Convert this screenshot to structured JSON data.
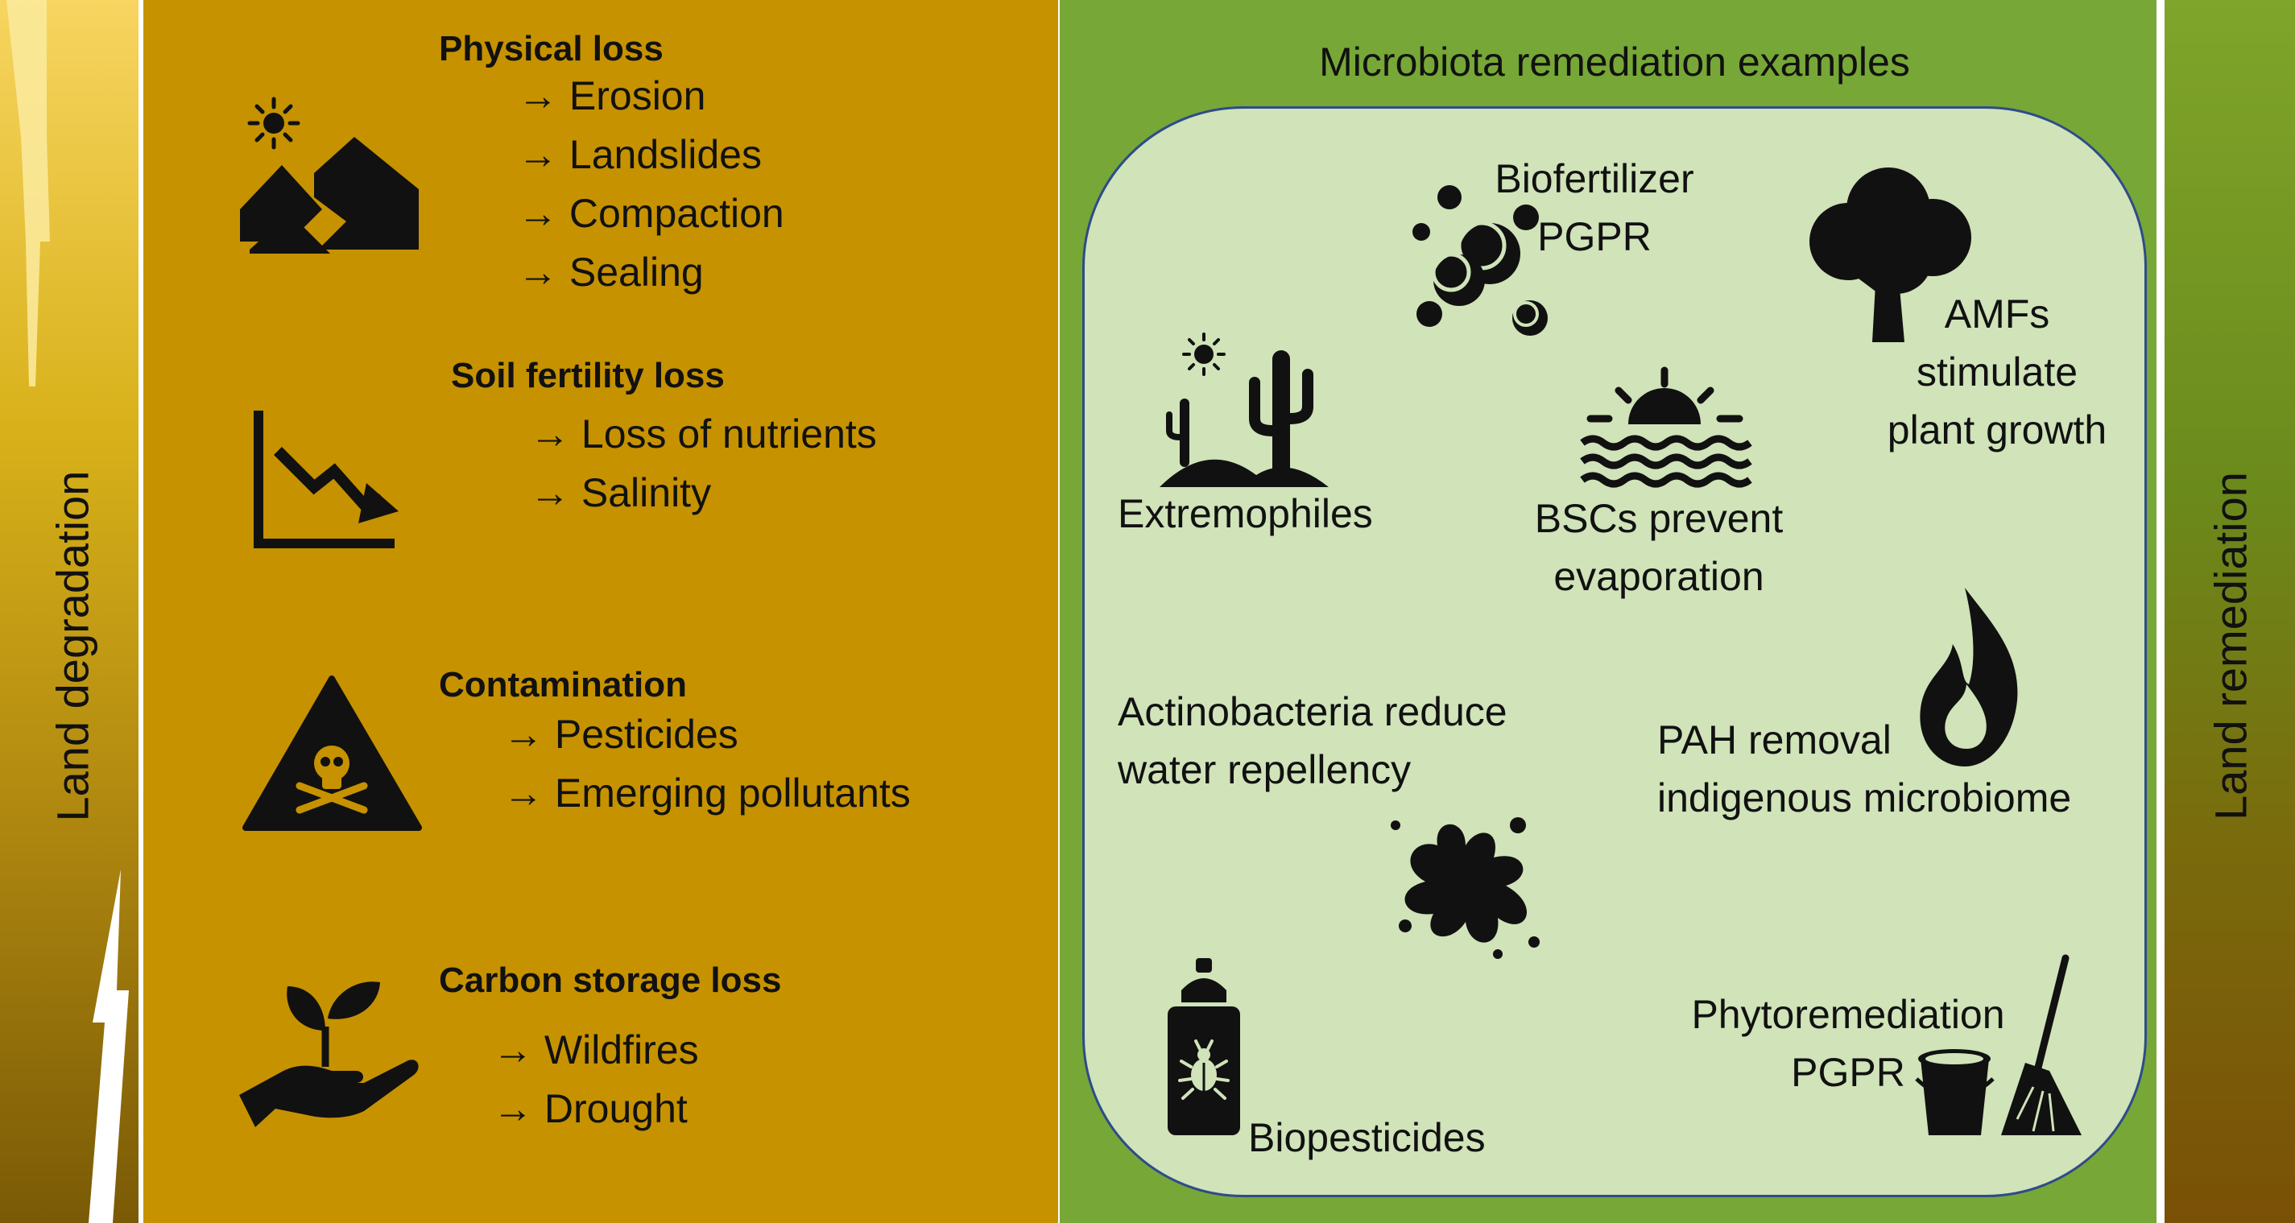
{
  "side_labels": {
    "left": "Land degradation",
    "right": "Land remediation"
  },
  "degradation": [
    {
      "heading": "Physical loss",
      "icon": "landslide-mountain-sun-icon",
      "items": [
        "→ Erosion",
        "→ Landslides",
        "→ Compaction",
        "→ Sealing"
      ]
    },
    {
      "heading": "Soil fertility loss",
      "icon": "declining-chart-icon",
      "items": [
        "→ Loss of nutrients",
        "→ Salinity"
      ]
    },
    {
      "heading": "Contamination",
      "icon": "toxic-warning-triangle-icon",
      "items": [
        "→ Pesticides",
        "→ Emerging pollutants"
      ]
    },
    {
      "heading": "Carbon storage loss",
      "icon": "hand-holding-sprout-icon",
      "items": [
        "→ Wildfires",
        "→ Drought"
      ]
    }
  ],
  "remediation": {
    "title": "Microbiota remediation examples",
    "examples": {
      "biofertilizer": [
        "Biofertilizer",
        "PGPR"
      ],
      "amfs": [
        "AMFs",
        "stimulate",
        "plant growth"
      ],
      "extremophiles": [
        "Extremophiles"
      ],
      "bscs": [
        "BSCs prevent",
        "evaporation"
      ],
      "actinobacteria": [
        "Actinobacteria reduce",
        "water repellency"
      ],
      "pah": [
        "PAH removal",
        "indigenous microbiome"
      ],
      "biopesticides": [
        "Biopesticides"
      ],
      "phytoremediation": [
        "Phytoremediation",
        "PGPR"
      ]
    }
  },
  "colors": {
    "degradation_panel": "#c69200",
    "remediation_panel": "#77a737",
    "remediation_box": "#d0e3b9",
    "box_border": "#2e4b8a",
    "icon": "#111111"
  }
}
